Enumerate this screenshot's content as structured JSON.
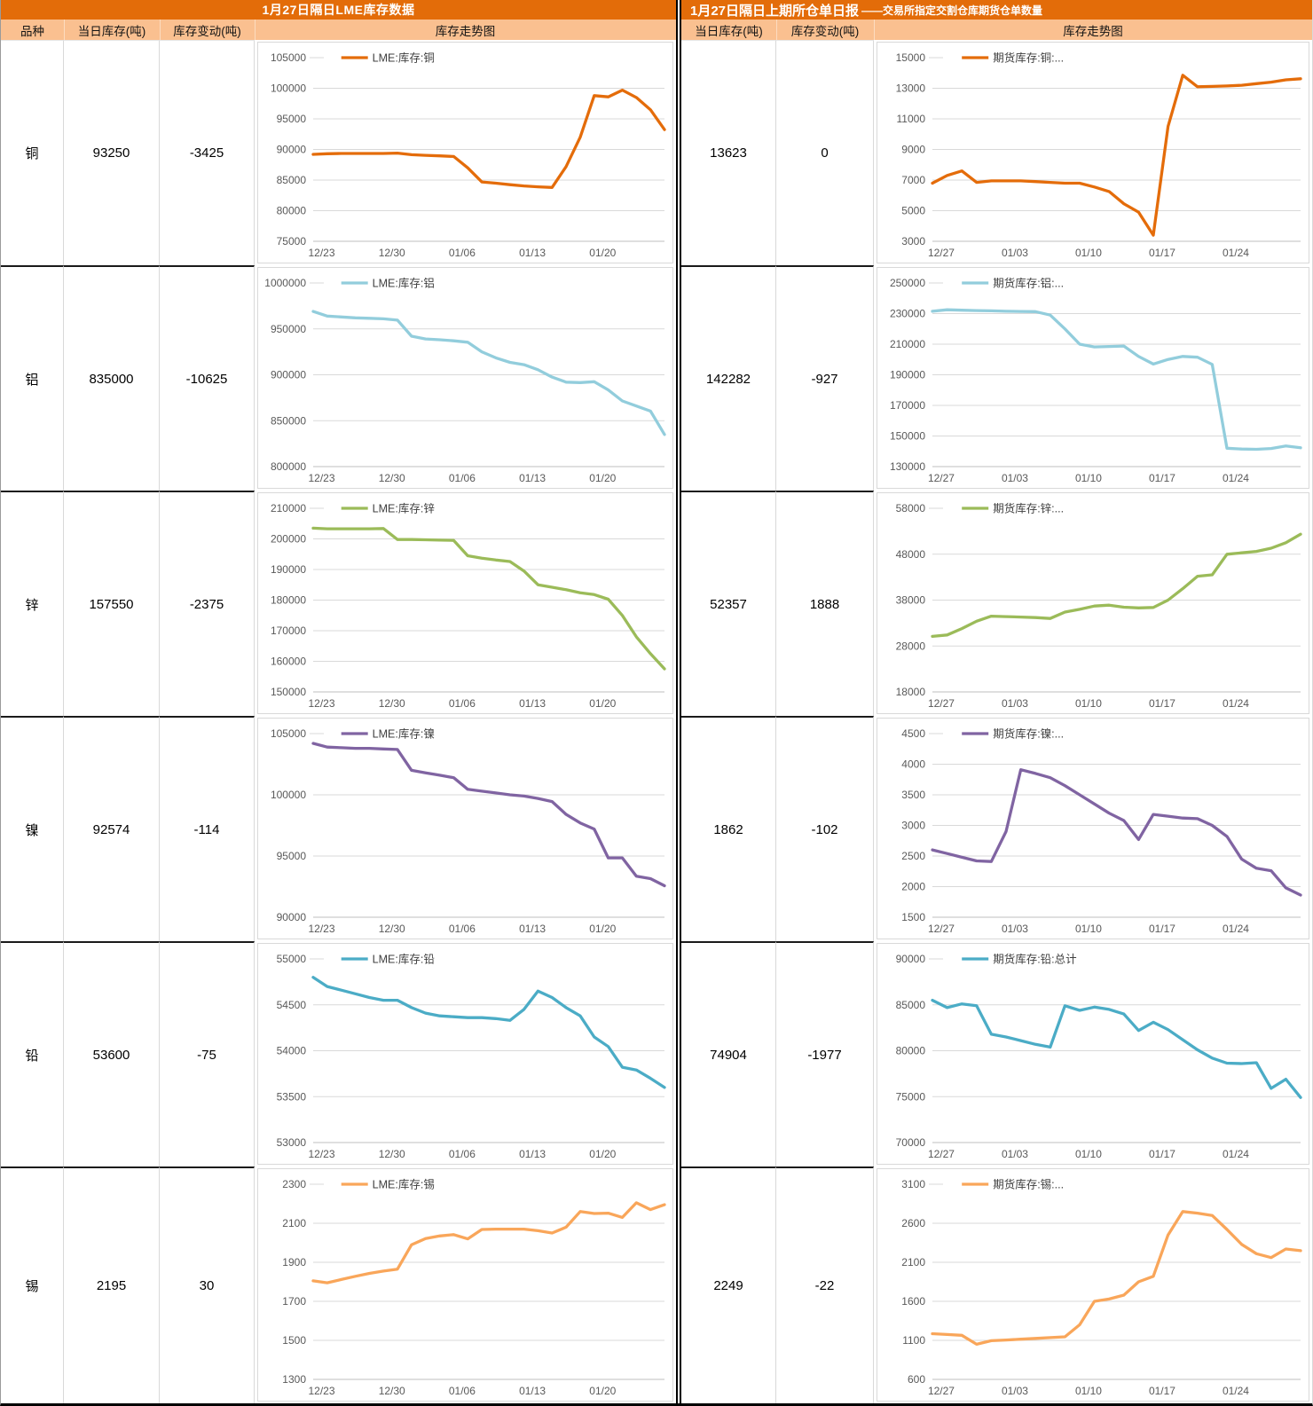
{
  "left_panel": {
    "title": "1月27日隔日LME库存数据",
    "headers": [
      "品种",
      "当日库存(吨)",
      "库存变动(吨)",
      "库存走势图"
    ]
  },
  "right_panel": {
    "title_main": "1月27日隔日上期所仓单日报",
    "title_sub": "——交易所指定交割仓库期货仓单数量",
    "headers": [
      "当日库存(吨)",
      "库存变动(吨)",
      "库存走势图"
    ]
  },
  "colors": {
    "header_dark_orange": "#E36C09",
    "header_light_orange": "#FAC090",
    "copper": "#E46C0A",
    "aluminum": "#92CDDC",
    "zinc": "#9BBB59",
    "nickel": "#8064A2",
    "lead": "#4BACC6",
    "tin": "#F9A65A",
    "gridline": "#D9D9D9",
    "axis_text": "#595959"
  },
  "chart_data": [
    {
      "type": "line",
      "panel": "LME",
      "metal": "铜",
      "inventory": "93250",
      "change": "-3425",
      "legend": "LME:库存:铜",
      "color": "#E46C0A",
      "ylim": [
        75000,
        105000
      ],
      "ytick_step": 5000,
      "x_tick_labels": [
        "12/23",
        "12/30",
        "01/06",
        "01/13",
        "01/20"
      ],
      "values": [
        89200,
        89300,
        89350,
        89350,
        89350,
        89350,
        89400,
        89150,
        89050,
        88950,
        88850,
        87000,
        84700,
        84500,
        84250,
        84050,
        83900,
        83800,
        87200,
        92000,
        98800,
        98600,
        99700,
        98500,
        96500,
        93250
      ]
    },
    {
      "type": "line",
      "panel": "LME",
      "metal": "铝",
      "inventory": "835000",
      "change": "-10625",
      "legend": "LME:库存:铝",
      "color": "#92CDDC",
      "ylim": [
        800000,
        1000000
      ],
      "ytick_step": 50000,
      "x_tick_labels": [
        "12/23",
        "12/30",
        "01/06",
        "01/13",
        "01/20"
      ],
      "values": [
        969000,
        964000,
        963000,
        962000,
        961500,
        961000,
        959500,
        942000,
        939000,
        938200,
        937000,
        935500,
        925000,
        918500,
        913500,
        911000,
        905500,
        897500,
        892000,
        891500,
        892500,
        883500,
        871500,
        866000,
        860500,
        835000
      ]
    },
    {
      "type": "line",
      "panel": "LME",
      "metal": "锌",
      "inventory": "157550",
      "change": "-2375",
      "legend": "LME:库存:锌",
      "color": "#9BBB59",
      "ylim": [
        150000,
        210000
      ],
      "ytick_step": 10000,
      "x_tick_labels": [
        "12/23",
        "12/30",
        "01/06",
        "01/13",
        "01/20"
      ],
      "values": [
        203500,
        203300,
        203300,
        203300,
        203300,
        203400,
        199800,
        199800,
        199700,
        199600,
        199500,
        194500,
        193700,
        193100,
        192600,
        189500,
        185000,
        184200,
        183400,
        182400,
        181800,
        180300,
        175000,
        168000,
        162500,
        157550
      ]
    },
    {
      "type": "line",
      "panel": "LME",
      "metal": "镍",
      "inventory": "92574",
      "change": "-114",
      "legend": "LME:库存:镍",
      "color": "#8064A2",
      "ylim": [
        90000,
        105000
      ],
      "ytick_step": 5000,
      "x_tick_labels": [
        "12/23",
        "12/30",
        "01/06",
        "01/13",
        "01/20"
      ],
      "values": [
        104200,
        103900,
        103850,
        103800,
        103800,
        103750,
        103700,
        102000,
        101800,
        101600,
        101400,
        100450,
        100300,
        100150,
        100000,
        99900,
        99700,
        99450,
        98400,
        97700,
        97200,
        94850,
        94850,
        93350,
        93150,
        92574
      ]
    },
    {
      "type": "line",
      "panel": "LME",
      "metal": "铅",
      "inventory": "53600",
      "change": "-75",
      "legend": "LME:库存:铅",
      "color": "#4BACC6",
      "ylim": [
        53000,
        55000
      ],
      "ytick_step": 500,
      "x_tick_labels": [
        "12/23",
        "12/30",
        "01/06",
        "01/13",
        "01/20"
      ],
      "values": [
        54800,
        54700,
        54660,
        54620,
        54580,
        54550,
        54550,
        54470,
        54410,
        54380,
        54370,
        54360,
        54360,
        54350,
        54330,
        54450,
        54650,
        54580,
        54470,
        54380,
        54150,
        54045,
        53820,
        53790,
        53700,
        53600
      ]
    },
    {
      "type": "line",
      "panel": "LME",
      "metal": "锡",
      "inventory": "2195",
      "change": "30",
      "legend": "LME:库存:锡",
      "color": "#F9A65A",
      "ylim": [
        1300,
        2300
      ],
      "ytick_step": 200,
      "x_tick_labels": [
        "12/23",
        "12/30",
        "01/06",
        "01/13",
        "01/20"
      ],
      "values": [
        1805,
        1795,
        1812,
        1828,
        1843,
        1855,
        1865,
        1990,
        2022,
        2035,
        2042,
        2020,
        2068,
        2070,
        2070,
        2070,
        2062,
        2050,
        2080,
        2160,
        2150,
        2152,
        2130,
        2205,
        2170,
        2195
      ]
    },
    {
      "type": "line",
      "panel": "SHFE",
      "inventory": "13623",
      "change": "0",
      "legend": "期货库存:铜:...",
      "color": "#E46C0A",
      "ylim": [
        3000,
        15000
      ],
      "ytick_step": 2000,
      "x_tick_labels": [
        "12/27",
        "01/03",
        "01/10",
        "01/17",
        "01/24"
      ],
      "values": [
        6800,
        7300,
        7600,
        6850,
        6950,
        6950,
        6950,
        6900,
        6850,
        6800,
        6800,
        6550,
        6250,
        5450,
        4900,
        3400,
        10500,
        13850,
        13100,
        13120,
        13150,
        13200,
        13300,
        13400,
        13550,
        13623
      ]
    },
    {
      "type": "line",
      "panel": "SHFE",
      "inventory": "142282",
      "change": "-927",
      "legend": "期货库存:铝:...",
      "color": "#92CDDC",
      "ylim": [
        130000,
        250000
      ],
      "ytick_step": 20000,
      "x_tick_labels": [
        "12/27",
        "01/03",
        "01/10",
        "01/17",
        "01/24"
      ],
      "values": [
        231500,
        232500,
        232200,
        232000,
        231800,
        231500,
        231400,
        231300,
        229000,
        220000,
        210000,
        208200,
        208500,
        208800,
        202000,
        197000,
        200000,
        202000,
        201500,
        196800,
        142000,
        141500,
        141300,
        141800,
        143500,
        142282
      ]
    },
    {
      "type": "line",
      "panel": "SHFE",
      "inventory": "52357",
      "change": "1888",
      "legend": "期货库存:锌:...",
      "color": "#9BBB59",
      "ylim": [
        18000,
        58000
      ],
      "ytick_step": 10000,
      "x_tick_labels": [
        "12/27",
        "01/03",
        "01/10",
        "01/17",
        "01/24"
      ],
      "values": [
        30100,
        30400,
        31800,
        33400,
        34500,
        34400,
        34300,
        34200,
        34000,
        35400,
        36000,
        36700,
        36900,
        36450,
        36300,
        36400,
        38000,
        40500,
        43200,
        43500,
        48000,
        48300,
        48600,
        49300,
        50500,
        52357
      ]
    },
    {
      "type": "line",
      "panel": "SHFE",
      "inventory": "1862",
      "change": "-102",
      "legend": "期货库存:镍:...",
      "color": "#8064A2",
      "ylim": [
        1500,
        4500
      ],
      "ytick_step": 500,
      "x_tick_labels": [
        "12/27",
        "01/03",
        "01/10",
        "01/17",
        "01/24"
      ],
      "values": [
        2600,
        2540,
        2480,
        2420,
        2410,
        2900,
        3910,
        3850,
        3780,
        3650,
        3500,
        3350,
        3200,
        3080,
        2770,
        3180,
        3150,
        3120,
        3110,
        3000,
        2820,
        2450,
        2300,
        2260,
        1980,
        1862
      ]
    },
    {
      "type": "line",
      "panel": "SHFE",
      "inventory": "74904",
      "change": "-1977",
      "legend": "期货库存:铅:总计",
      "color": "#4BACC6",
      "ylim": [
        70000,
        90000
      ],
      "ytick_step": 5000,
      "x_tick_labels": [
        "12/27",
        "01/03",
        "01/10",
        "01/17",
        "01/24"
      ],
      "values": [
        85500,
        84700,
        85100,
        84900,
        81800,
        81500,
        81100,
        80700,
        80400,
        84900,
        84400,
        84750,
        84500,
        84000,
        82200,
        83100,
        82300,
        81200,
        80100,
        79200,
        78650,
        78600,
        78700,
        75900,
        76900,
        74904
      ]
    },
    {
      "type": "line",
      "panel": "SHFE",
      "inventory": "2249",
      "change": "-22",
      "legend": "期货库存:锡:...",
      "color": "#F9A65A",
      "ylim": [
        600,
        3100
      ],
      "ytick_step": 500,
      "x_tick_labels": [
        "12/27",
        "01/03",
        "01/10",
        "01/17",
        "01/24"
      ],
      "values": [
        1185,
        1175,
        1165,
        1050,
        1095,
        1105,
        1115,
        1125,
        1135,
        1145,
        1300,
        1600,
        1630,
        1680,
        1850,
        1920,
        2450,
        2750,
        2730,
        2700,
        2520,
        2330,
        2210,
        2160,
        2270,
        2249
      ]
    }
  ]
}
